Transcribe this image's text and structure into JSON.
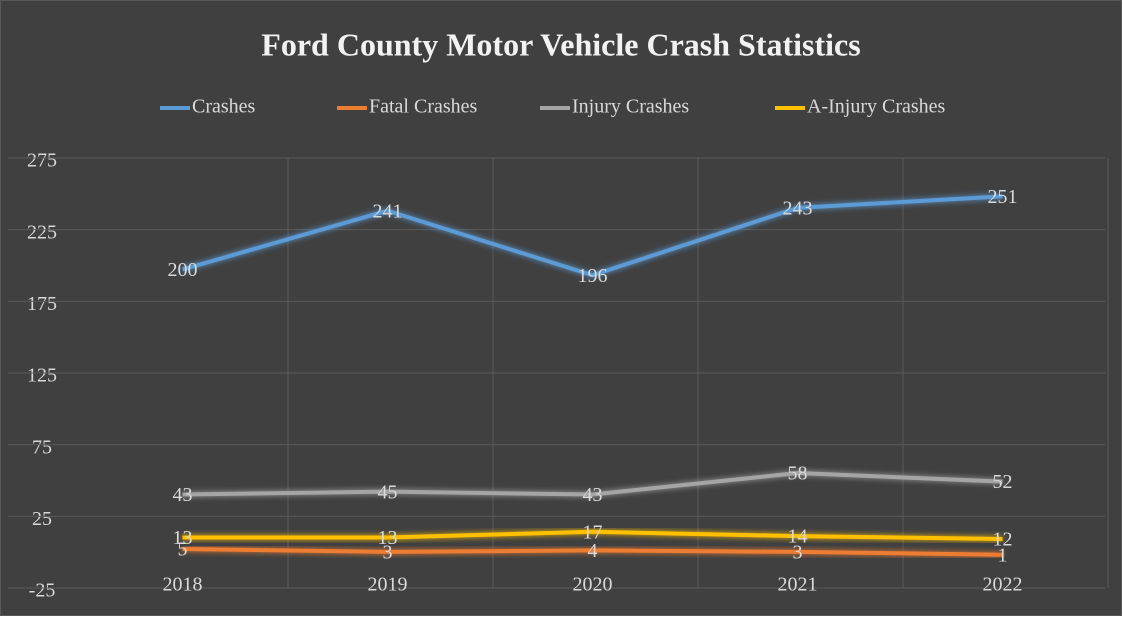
{
  "chart_data": {
    "type": "line",
    "title": "Ford County Motor Vehicle Crash Statistics",
    "categories": [
      "2018",
      "2019",
      "2020",
      "2021",
      "2022"
    ],
    "series": [
      {
        "name": "Crashes",
        "color": "#5b9bd5",
        "values": [
          200,
          241,
          196,
          243,
          251
        ]
      },
      {
        "name": "Fatal Crashes",
        "color": "#ed7d31",
        "values": [
          5,
          3,
          4,
          3,
          1
        ]
      },
      {
        "name": "Injury Crashes",
        "color": "#a5a5a5",
        "values": [
          43,
          45,
          43,
          58,
          52
        ]
      },
      {
        "name": "A-Injury Crashes",
        "color": "#ffc000",
        "values": [
          13,
          13,
          17,
          14,
          12
        ]
      }
    ],
    "ylim": [
      -25,
      275
    ],
    "yticks": [
      -25,
      25,
      75,
      125,
      175,
      225,
      275
    ],
    "grid": true,
    "legend": "top"
  }
}
